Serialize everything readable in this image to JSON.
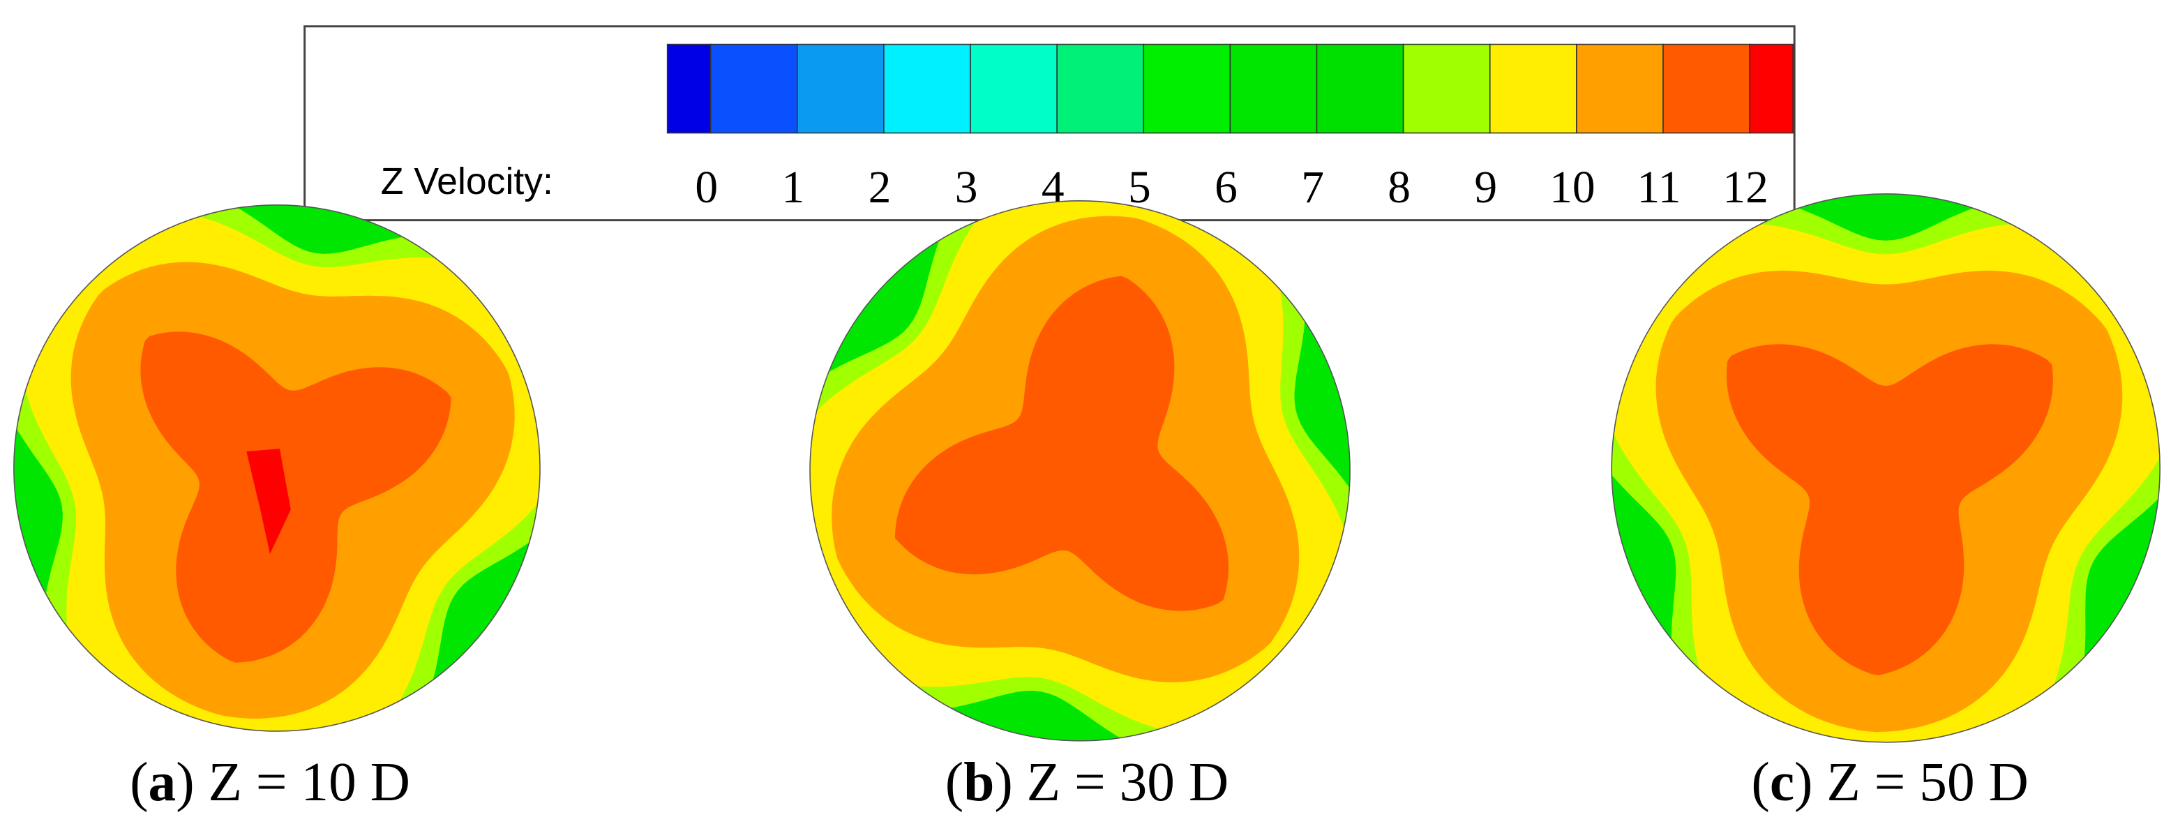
{
  "chart_data": {
    "type": "contour",
    "colorbar": {
      "label": "Z Velocity:",
      "ticks": [
        0,
        1,
        2,
        3,
        4,
        5,
        6,
        7,
        8,
        9,
        10,
        11,
        12
      ],
      "colors": [
        "#0000e6",
        "#0a50ff",
        "#0a9bf0",
        "#00f0ff",
        "#00ffc8",
        "#00f078",
        "#00ee00",
        "#00e600",
        "#00e000",
        "#a0ff00",
        "#ffee00",
        "#ffa000",
        "#ff5a00",
        "#ff0000"
      ]
    },
    "panels": [
      {
        "prefix": "(",
        "letter": "a",
        "caption": ") Z = 10 D"
      },
      {
        "prefix": "(",
        "letter": "b",
        "caption": ") Z = 30 D"
      },
      {
        "prefix": "(",
        "letter": "c",
        "caption": ") Z = 50 D"
      }
    ]
  }
}
